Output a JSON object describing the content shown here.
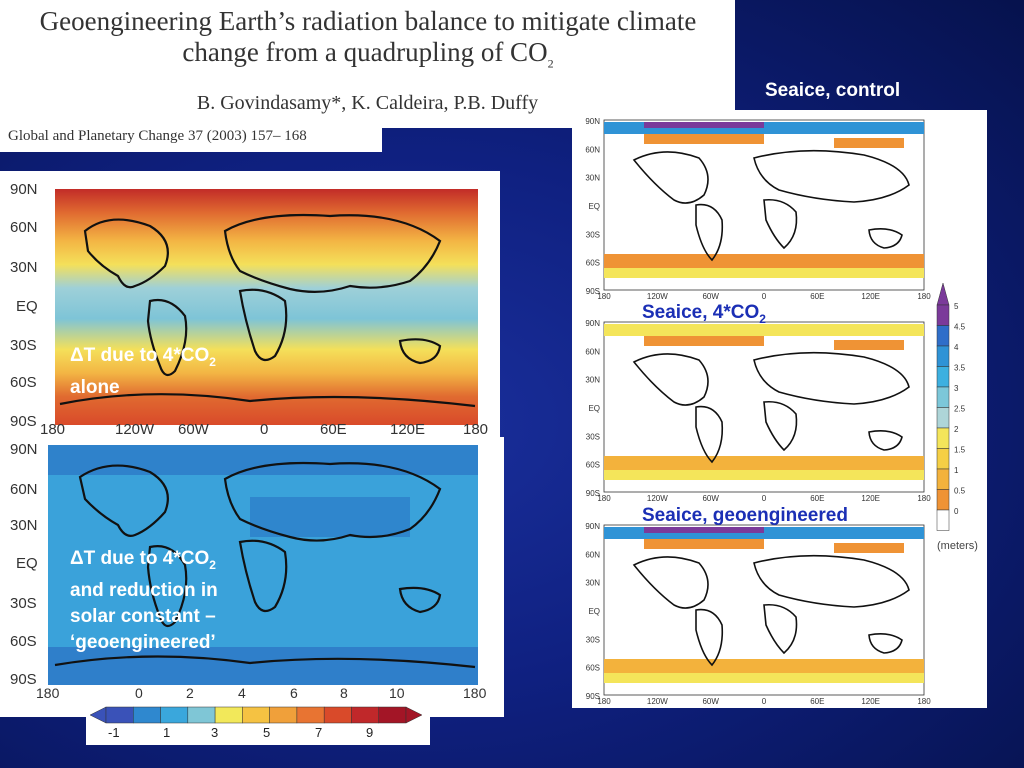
{
  "paper": {
    "title_line1": "Geoengineering Earth’s radiation balance to mitigate climate",
    "title_line2": "change from a quadrupling of CO",
    "title_sub": "2",
    "authors": "B. Govindasamy*, K. Caldeira, P.B. Duffy",
    "journal": "Global and Planetary Change 37 (2003) 157– 168"
  },
  "labels": {
    "seaice_control": "Seaice, control",
    "seaice_4co2": "Seaice, 4*CO",
    "seaice_4co2_sub": "2",
    "seaice_geo": "Seaice, geoengineered",
    "dt_alone_1": "ΔT due to 4*CO",
    "dt_alone_sub": "2",
    "dt_alone_2": "alone",
    "dt_geo_1": "ΔT due to 4*CO",
    "dt_geo_sub": "2",
    "dt_geo_2": "and reduction in",
    "dt_geo_3": "solar constant –",
    "dt_geo_4": "‘geoengineered’"
  },
  "temp_maps": {
    "lat_ticks": [
      "90N",
      "60N",
      "30N",
      "EQ",
      "30S",
      "60S",
      "90S"
    ],
    "lon_ticks": [
      "180",
      "120W",
      "60W",
      "0",
      "60E",
      "120E",
      "180"
    ],
    "bottom_ticks": [
      "180",
      "0",
      "2",
      "4",
      "6",
      "8",
      "10",
      "180"
    ]
  },
  "temp_colorbar": {
    "labels": [
      "-1",
      "1",
      "3",
      "5",
      "7",
      "9"
    ],
    "colors": [
      "#3a52b8",
      "#2f88cf",
      "#3aa7dc",
      "#7fc6d6",
      "#f2e85a",
      "#f5c242",
      "#f0a03a",
      "#e87432",
      "#d94a2a",
      "#c0282a",
      "#a31526"
    ]
  },
  "ice_maps": {
    "lat_ticks": [
      "90N",
      "60N",
      "30N",
      "EQ",
      "30S",
      "60S",
      "90S"
    ],
    "lon_ticks": [
      "180",
      "120W",
      "60W",
      "0",
      "60E",
      "120E",
      "180"
    ]
  },
  "ice_colorbar": {
    "labels": [
      "5",
      "4.5",
      "4",
      "3.5",
      "3",
      "2.5",
      "2",
      "1.5",
      "1",
      "0.5",
      "0"
    ],
    "unit": "(meters)",
    "colors": [
      "#7b3a9a",
      "#2f6ec9",
      "#2f93d6",
      "#3db0e0",
      "#7cc7d9",
      "#aed5d8",
      "#f4e55a",
      "#f5cf45",
      "#f3b23c",
      "#ef9335",
      "#ffffff"
    ]
  }
}
